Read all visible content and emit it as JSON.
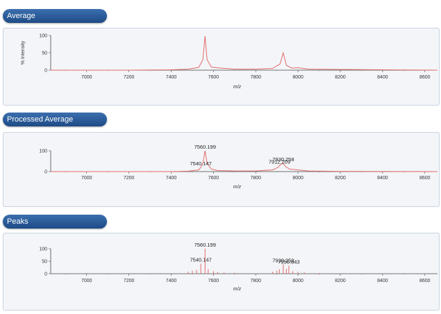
{
  "panels": [
    {
      "title": "Average"
    },
    {
      "title": "Processed Average"
    },
    {
      "title": "Peaks"
    }
  ],
  "colors": {
    "trace": "#e46a6a",
    "tab": "#2a5a98"
  },
  "chart_data": [
    {
      "type": "line",
      "title": "Average",
      "ylabel": "% Intensity",
      "xlabel": "m/z",
      "xlim": [
        6830,
        8660
      ],
      "ylim": [
        0,
        100
      ],
      "xticks": [
        7000,
        7200,
        7400,
        7600,
        7800,
        8000,
        8200,
        8400,
        8600
      ],
      "yticks": [
        0,
        50,
        100
      ],
      "series": [
        {
          "x": [
            6830,
            7000,
            7200,
            7400,
            7480,
            7530,
            7550,
            7560,
            7570,
            7590,
            7630,
            7700,
            7800,
            7880,
            7915,
            7930,
            7945,
            7970,
            8000,
            8050,
            8200,
            8400,
            8660
          ],
          "y": [
            0,
            0,
            0,
            1,
            3,
            8,
            30,
            98,
            30,
            9,
            6,
            3,
            3,
            5,
            18,
            50,
            14,
            6,
            7,
            3,
            2,
            1,
            0
          ]
        }
      ]
    },
    {
      "type": "line",
      "title": "Processed Average",
      "xlabel": "m/z",
      "xlim": [
        6830,
        8660
      ],
      "ylim": [
        0,
        100
      ],
      "xticks": [
        7000,
        7200,
        7400,
        7600,
        7800,
        8000,
        8200,
        8400,
        8600
      ],
      "yticks": [
        0,
        100
      ],
      "series": [
        {
          "x": [
            6830,
            7400,
            7480,
            7530,
            7540,
            7550,
            7560,
            7570,
            7590,
            7620,
            7700,
            7800,
            7880,
            7905,
            7912,
            7920,
            7930,
            7940,
            7960,
            8000,
            8050,
            8200,
            8660
          ],
          "y": [
            0,
            0,
            2,
            8,
            20,
            40,
            100,
            40,
            12,
            5,
            3,
            3,
            8,
            20,
            28,
            35,
            40,
            25,
            12,
            8,
            3,
            1,
            0
          ]
        }
      ],
      "annotations": [
        {
          "x": 7560.199,
          "label": "7560.199"
        },
        {
          "x": 7540.147,
          "label": "7540.147"
        },
        {
          "x": 7930.258,
          "label": "7930.258"
        },
        {
          "x": 7912.209,
          "label": "7912.209"
        }
      ]
    },
    {
      "type": "bar",
      "title": "Peaks",
      "xlabel": "m/z",
      "xlim": [
        6830,
        8660
      ],
      "ylim": [
        0,
        100
      ],
      "xticks": [
        7000,
        7200,
        7400,
        7600,
        7800,
        8000,
        8200,
        8400,
        8600
      ],
      "yticks": [
        0,
        50,
        100
      ],
      "peaks": [
        {
          "x": 7480,
          "y": 8
        },
        {
          "x": 7500,
          "y": 12
        },
        {
          "x": 7520,
          "y": 15
        },
        {
          "x": 7540.147,
          "y": 40
        },
        {
          "x": 7560.199,
          "y": 100
        },
        {
          "x": 7575,
          "y": 18
        },
        {
          "x": 7600,
          "y": 10
        },
        {
          "x": 7620,
          "y": 7
        },
        {
          "x": 7650,
          "y": 5
        },
        {
          "x": 7700,
          "y": 4
        },
        {
          "x": 7880,
          "y": 8
        },
        {
          "x": 7900,
          "y": 12
        },
        {
          "x": 7912,
          "y": 18
        },
        {
          "x": 7930.258,
          "y": 38
        },
        {
          "x": 7945,
          "y": 20
        },
        {
          "x": 7956.643,
          "y": 32
        },
        {
          "x": 7975,
          "y": 10
        },
        {
          "x": 8000,
          "y": 8
        },
        {
          "x": 8030,
          "y": 5
        },
        {
          "x": 8100,
          "y": 3
        },
        {
          "x": 7350,
          "y": 2
        },
        {
          "x": 7200,
          "y": 1
        },
        {
          "x": 8250,
          "y": 2
        }
      ],
      "annotations": [
        {
          "x": 7560.199,
          "label": "7560.199"
        },
        {
          "x": 7540.147,
          "label": "7540.147"
        },
        {
          "x": 7930.258,
          "label": "7930.258"
        },
        {
          "x": 7956.643,
          "label": "7956.643"
        }
      ]
    }
  ]
}
